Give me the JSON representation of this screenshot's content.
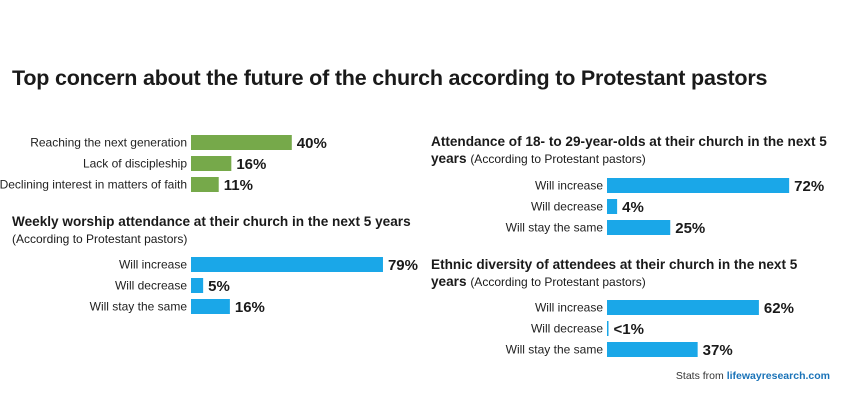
{
  "title": "Top concern about the future of the church according to Protestant pastors",
  "source": {
    "prefix": "Stats from ",
    "link": "lifewayresearch.com"
  },
  "colors": {
    "green": "#76a94a",
    "blue": "#1aa7e8"
  },
  "chart_data": [
    {
      "id": "top-concern",
      "type": "bar",
      "orientation": "horizontal",
      "title": "",
      "subtitle": "",
      "categories": [
        "Reaching the next generation",
        "Lack of discipleship",
        "Declining interest in matters of faith"
      ],
      "values": [
        40,
        16,
        11
      ],
      "value_labels": [
        "40%",
        "16%",
        "11%"
      ],
      "color": "#76a94a",
      "xlim": [
        0,
        100
      ]
    },
    {
      "id": "weekly-worship",
      "type": "bar",
      "orientation": "horizontal",
      "title": "Weekly worship attendance at their church in the next 5 years",
      "subtitle": "(According to Protestant pastors)",
      "categories": [
        "Will increase",
        "Will decrease",
        "Will stay the same"
      ],
      "values": [
        79,
        5,
        16
      ],
      "value_labels": [
        "79%",
        "5%",
        "16%"
      ],
      "color": "#1aa7e8",
      "xlim": [
        0,
        100
      ]
    },
    {
      "id": "attendance-18-29",
      "type": "bar",
      "orientation": "horizontal",
      "title": "Attendance of 18- to 29-year-olds at their church in the next 5 years",
      "subtitle": "(According to Protestant pastors)",
      "categories": [
        "Will increase",
        "Will decrease",
        "Will stay the same"
      ],
      "values": [
        72,
        4,
        25
      ],
      "value_labels": [
        "72%",
        "4%",
        "25%"
      ],
      "color": "#1aa7e8",
      "xlim": [
        0,
        100
      ]
    },
    {
      "id": "ethnic-diversity",
      "type": "bar",
      "orientation": "horizontal",
      "title": "Ethnic diversity of attendees at their church in the next 5 years",
      "subtitle": "(According to Protestant pastors)",
      "categories": [
        "Will increase",
        "Will decrease",
        "Will stay the same"
      ],
      "values": [
        62,
        0.5,
        37
      ],
      "value_labels": [
        "62%",
        "<1%",
        "37%"
      ],
      "color": "#1aa7e8",
      "xlim": [
        0,
        100
      ]
    }
  ]
}
